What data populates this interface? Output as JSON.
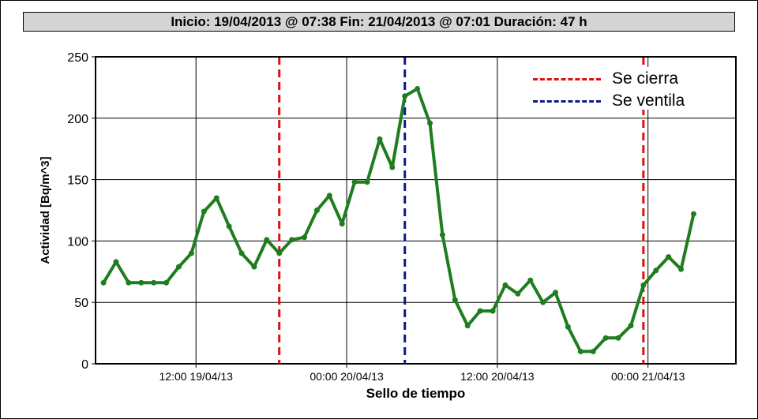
{
  "header": {
    "title": "Inicio: 19/04/2013 @ 07:38 Fin: 21/04/2013 @ 07:01 Duración: 47 h"
  },
  "chart_data": {
    "type": "line",
    "title": "Inicio: 19/04/2013 @ 07:38 Fin: 21/04/2013 @ 07:01 Duración: 47 h",
    "xlabel": "Sello de tiempo",
    "ylabel": "Actividad [Bq/m^3]",
    "xlim": [
      "2013-04-19 04:00",
      "2013-04-21 07:00"
    ],
    "ylim": [
      0,
      250
    ],
    "yticks": [
      0,
      50,
      100,
      150,
      200,
      250
    ],
    "xticks": [
      {
        "t": "2013-04-19 12:00",
        "label": "12:00 19/04/13"
      },
      {
        "t": "2013-04-20 00:00",
        "label": "00:00 20/04/13"
      },
      {
        "t": "2013-04-20 12:00",
        "label": "12:00 20/04/13"
      },
      {
        "t": "2013-04-21 00:00",
        "label": "00:00 21/04/13"
      }
    ],
    "grid": true,
    "legend_position": "top-right",
    "series": [
      {
        "color": "#1e7d1e",
        "points": [
          [
            "2013-04-19 04:38",
            66
          ],
          [
            "2013-04-19 05:38",
            83
          ],
          [
            "2013-04-19 06:38",
            66
          ],
          [
            "2013-04-19 07:38",
            66
          ],
          [
            "2013-04-19 08:38",
            66
          ],
          [
            "2013-04-19 09:38",
            66
          ],
          [
            "2013-04-19 10:38",
            79
          ],
          [
            "2013-04-19 11:38",
            90
          ],
          [
            "2013-04-19 12:38",
            124
          ],
          [
            "2013-04-19 13:38",
            135
          ],
          [
            "2013-04-19 14:38",
            112
          ],
          [
            "2013-04-19 15:38",
            90
          ],
          [
            "2013-04-19 16:38",
            79
          ],
          [
            "2013-04-19 17:38",
            101
          ],
          [
            "2013-04-19 18:38",
            90
          ],
          [
            "2013-04-19 19:38",
            101
          ],
          [
            "2013-04-19 20:38",
            103
          ],
          [
            "2013-04-19 21:38",
            125
          ],
          [
            "2013-04-19 22:38",
            137
          ],
          [
            "2013-04-19 23:38",
            114
          ],
          [
            "2013-04-20 00:38",
            148
          ],
          [
            "2013-04-20 01:38",
            148
          ],
          [
            "2013-04-20 02:38",
            183
          ],
          [
            "2013-04-20 03:38",
            160
          ],
          [
            "2013-04-20 04:38",
            218
          ],
          [
            "2013-04-20 05:38",
            224
          ],
          [
            "2013-04-20 06:38",
            196
          ],
          [
            "2013-04-20 07:38",
            105
          ],
          [
            "2013-04-20 08:38",
            52
          ],
          [
            "2013-04-20 09:38",
            31
          ],
          [
            "2013-04-20 10:38",
            43
          ],
          [
            "2013-04-20 11:38",
            43
          ],
          [
            "2013-04-20 12:38",
            64
          ],
          [
            "2013-04-20 13:38",
            57
          ],
          [
            "2013-04-20 14:38",
            68
          ],
          [
            "2013-04-20 15:38",
            50
          ],
          [
            "2013-04-20 16:38",
            58
          ],
          [
            "2013-04-20 17:38",
            30
          ],
          [
            "2013-04-20 18:38",
            10
          ],
          [
            "2013-04-20 19:38",
            10
          ],
          [
            "2013-04-20 20:38",
            21
          ],
          [
            "2013-04-20 21:38",
            21
          ],
          [
            "2013-04-20 22:38",
            31
          ],
          [
            "2013-04-20 23:38",
            64
          ],
          [
            "2013-04-21 00:38",
            76
          ],
          [
            "2013-04-21 01:38",
            87
          ],
          [
            "2013-04-21 02:38",
            77
          ],
          [
            "2013-04-21 03:38",
            122
          ]
        ]
      }
    ],
    "markers": [
      {
        "t": "2013-04-19 18:38",
        "color": "#e01010",
        "label": "Se cierra"
      },
      {
        "t": "2013-04-20 04:38",
        "color": "#0a1a8c",
        "label": "Se ventila"
      },
      {
        "t": "2013-04-20 23:38",
        "color": "#e01010",
        "label": "Se cierra"
      }
    ],
    "legend": [
      {
        "label": "Se cierra",
        "color": "#e01010"
      },
      {
        "label": "Se ventila",
        "color": "#0a1a8c"
      }
    ]
  }
}
